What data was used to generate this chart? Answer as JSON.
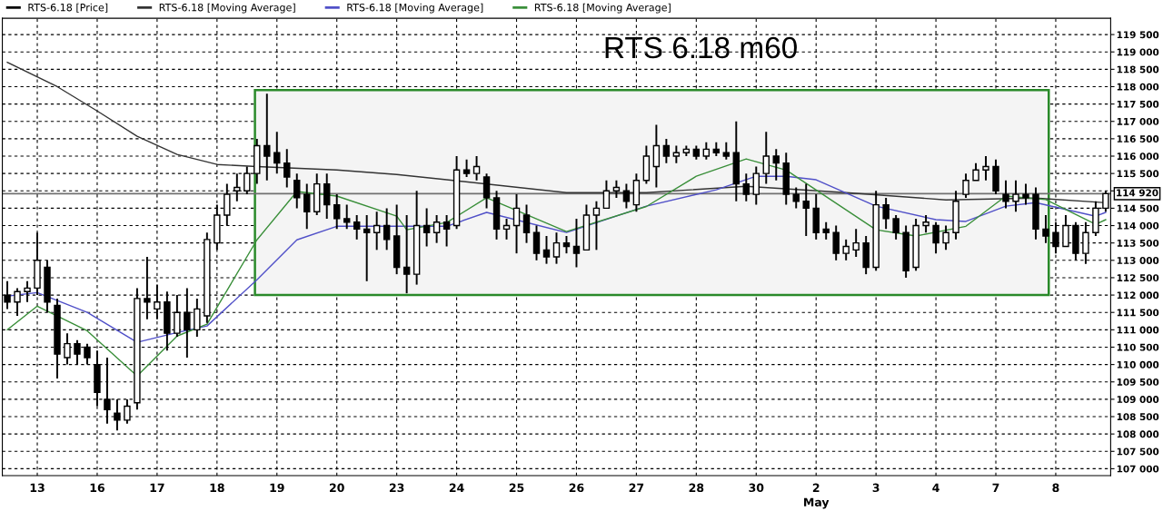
{
  "chart_data": {
    "type": "candlestick",
    "title": "RTS 6.18 m60",
    "categories": [
      null,
      null,
      null,
      "13",
      null,
      null,
      null,
      null,
      null,
      "16",
      null,
      null,
      null,
      null,
      null,
      "17",
      null,
      null,
      null,
      null,
      null,
      "18",
      null,
      null,
      null,
      null,
      null,
      "19",
      null,
      null,
      null,
      null,
      null,
      "20",
      null,
      null,
      null,
      null,
      null,
      "23",
      null,
      null,
      null,
      null,
      null,
      "24",
      null,
      null,
      null,
      null,
      null,
      "25",
      null,
      null,
      null,
      null,
      null,
      "26",
      null,
      null,
      null,
      null,
      null,
      "27",
      null,
      null,
      null,
      null,
      null,
      "28",
      null,
      null,
      null,
      null,
      null,
      "30",
      null,
      null,
      null,
      null,
      null,
      "2\nMay",
      null,
      null,
      null,
      null,
      null,
      "3",
      null,
      null,
      null,
      null,
      null,
      "4",
      null,
      null,
      null,
      null,
      null,
      "7",
      null,
      null,
      null,
      null,
      null,
      "8",
      null,
      null,
      null,
      null,
      null
    ],
    "series": [
      {
        "name": "RTS-6.18 [Price]",
        "color": "#000000",
        "ohlc": [
          [
            112000,
            112400,
            111600,
            111800
          ],
          [
            111800,
            112200,
            111400,
            112100
          ],
          [
            112100,
            112400,
            111800,
            112200
          ],
          [
            112200,
            113800,
            112000,
            113000
          ],
          [
            112800,
            113000,
            111500,
            111800
          ],
          [
            111700,
            111900,
            109600,
            110300
          ],
          [
            110200,
            110900,
            110000,
            110600
          ],
          [
            110600,
            110700,
            110000,
            110300
          ],
          [
            110500,
            110600,
            110000,
            110200
          ],
          [
            110000,
            110400,
            108800,
            109200
          ],
          [
            109000,
            110200,
            108300,
            108700
          ],
          [
            108600,
            109000,
            108100,
            108400
          ],
          [
            108400,
            109000,
            108300,
            108800
          ],
          [
            108900,
            112200,
            108700,
            111900
          ],
          [
            111900,
            113100,
            111300,
            111800
          ],
          [
            111600,
            112300,
            111300,
            111800
          ],
          [
            111800,
            112100,
            110400,
            110900
          ],
          [
            110900,
            112000,
            110800,
            111500
          ],
          [
            111500,
            112200,
            110200,
            111000
          ],
          [
            111000,
            111900,
            110800,
            111600
          ],
          [
            111400,
            113800,
            111200,
            113600
          ],
          [
            113500,
            114600,
            113300,
            114300
          ],
          [
            114300,
            115200,
            114000,
            114900
          ],
          [
            115000,
            115500,
            114700,
            115100
          ],
          [
            115000,
            115700,
            114900,
            115500
          ],
          [
            115500,
            116500,
            115200,
            116300
          ],
          [
            116300,
            117800,
            115300,
            116000
          ],
          [
            116100,
            116700,
            115500,
            115800
          ],
          [
            115800,
            116200,
            115100,
            115400
          ],
          [
            115300,
            115500,
            114500,
            114800
          ],
          [
            114900,
            115200,
            113900,
            114400
          ],
          [
            114400,
            115500,
            114300,
            115200
          ],
          [
            115200,
            115500,
            114200,
            114600
          ],
          [
            114600,
            114900,
            113900,
            114200
          ],
          [
            114200,
            114600,
            113900,
            114100
          ],
          [
            114100,
            114300,
            113600,
            113900
          ],
          [
            113900,
            114300,
            112400,
            113800
          ],
          [
            113800,
            114400,
            113300,
            114000
          ],
          [
            114000,
            114500,
            113300,
            113600
          ],
          [
            113700,
            114600,
            112600,
            112800
          ],
          [
            112800,
            114300,
            112050,
            112600
          ],
          [
            112600,
            115000,
            112300,
            114000
          ],
          [
            114000,
            114500,
            113400,
            113800
          ],
          [
            113800,
            114300,
            113500,
            114100
          ],
          [
            114100,
            114300,
            113400,
            113900
          ],
          [
            114000,
            116000,
            113900,
            115600
          ],
          [
            115600,
            115900,
            115400,
            115500
          ],
          [
            115500,
            116000,
            115300,
            115700
          ],
          [
            115400,
            115500,
            114500,
            114800
          ],
          [
            114800,
            115000,
            113600,
            113900
          ],
          [
            113900,
            114200,
            113600,
            114000
          ],
          [
            114000,
            114900,
            113200,
            114500
          ],
          [
            114300,
            114600,
            113500,
            113800
          ],
          [
            113800,
            114000,
            113000,
            113200
          ],
          [
            113300,
            113700,
            112900,
            113100
          ],
          [
            113100,
            113800,
            112900,
            113500
          ],
          [
            113500,
            113700,
            113200,
            113400
          ],
          [
            113400,
            114200,
            112800,
            113200
          ],
          [
            113300,
            114600,
            113300,
            114300
          ],
          [
            114300,
            114700,
            113300,
            114500
          ],
          [
            114500,
            115300,
            114500,
            115000
          ],
          [
            115000,
            115300,
            114800,
            115100
          ],
          [
            115000,
            115200,
            114500,
            114700
          ],
          [
            114600,
            115500,
            114400,
            115300
          ],
          [
            115300,
            116300,
            115200,
            116000
          ],
          [
            115700,
            116900,
            115100,
            116300
          ],
          [
            116300,
            116500,
            115800,
            116000
          ],
          [
            116000,
            116300,
            115800,
            116100
          ],
          [
            116100,
            116300,
            116000,
            116200
          ],
          [
            116200,
            116300,
            115900,
            116000
          ],
          [
            116000,
            116400,
            115900,
            116200
          ],
          [
            116200,
            116400,
            116000,
            116100
          ],
          [
            116100,
            116400,
            115900,
            116000
          ],
          [
            116100,
            117000,
            114700,
            115200
          ],
          [
            115200,
            115500,
            114700,
            114900
          ],
          [
            114900,
            115700,
            114600,
            115500
          ],
          [
            115500,
            116700,
            115200,
            116000
          ],
          [
            116000,
            116200,
            115300,
            115800
          ],
          [
            115800,
            116100,
            114600,
            114900
          ],
          [
            114900,
            115100,
            114500,
            114700
          ],
          [
            114700,
            115200,
            113700,
            114500
          ],
          [
            114500,
            114900,
            113600,
            113800
          ],
          [
            113900,
            114100,
            113600,
            113800
          ],
          [
            113800,
            114000,
            113000,
            113200
          ],
          [
            113200,
            113600,
            113000,
            113400
          ],
          [
            113300,
            113900,
            113100,
            113500
          ],
          [
            113500,
            113700,
            112600,
            112800
          ],
          [
            112800,
            115000,
            112700,
            114600
          ],
          [
            114600,
            114800,
            113900,
            114200
          ],
          [
            114200,
            114300,
            113600,
            113800
          ],
          [
            113800,
            114000,
            112500,
            112700
          ],
          [
            112800,
            114200,
            112700,
            114000
          ],
          [
            114000,
            114300,
            113800,
            114100
          ],
          [
            114000,
            114100,
            113200,
            113500
          ],
          [
            113500,
            114000,
            113300,
            113800
          ],
          [
            113800,
            115000,
            113600,
            114700
          ],
          [
            114900,
            115500,
            114800,
            115300
          ],
          [
            115300,
            115800,
            115300,
            115600
          ],
          [
            115600,
            116000,
            115300,
            115700
          ],
          [
            115700,
            115900,
            114900,
            115000
          ],
          [
            114900,
            115300,
            114500,
            114700
          ],
          [
            114700,
            115300,
            114400,
            114900
          ],
          [
            114900,
            115200,
            114600,
            114800
          ],
          [
            114900,
            115100,
            113600,
            113900
          ],
          [
            113900,
            114300,
            113500,
            113700
          ],
          [
            113800,
            114100,
            113200,
            113400
          ],
          [
            113400,
            114300,
            113400,
            114000
          ],
          [
            114000,
            114100,
            113000,
            113200
          ],
          [
            113200,
            114100,
            112900,
            113800
          ],
          [
            113800,
            114700,
            113700,
            114500
          ],
          [
            114500,
            115000,
            114400,
            114920
          ]
        ]
      },
      {
        "name": "RTS-6.18 [Moving Average]",
        "type": "line",
        "color": "#333333",
        "values": [
          118700,
          null,
          null,
          null,
          null,
          118000,
          null,
          null,
          null,
          117300,
          null,
          null,
          null,
          116570,
          null,
          null,
          null,
          116050,
          null,
          null,
          null,
          115760,
          null,
          null,
          null,
          115700,
          null,
          null,
          null,
          null,
          null,
          null,
          null,
          115600,
          null,
          null,
          null,
          null,
          null,
          115470,
          null,
          null,
          null,
          null,
          115320,
          null,
          null,
          null,
          null,
          null,
          null,
          null,
          null,
          null,
          null,
          null,
          114950,
          null,
          null,
          null,
          null,
          null,
          null,
          null,
          114950,
          null,
          null,
          null,
          null,
          null,
          null,
          null,
          null,
          null,
          115130,
          null,
          null,
          null,
          null,
          null,
          null,
          null,
          null,
          null,
          114950,
          null,
          null,
          null,
          null,
          null,
          null,
          null,
          null,
          null,
          114740,
          null,
          null,
          null,
          null,
          null,
          null,
          null,
          null,
          114790,
          null,
          null,
          null,
          null,
          null,
          null,
          114660
        ]
      },
      {
        "name": "RTS-6.18 [Moving Average]",
        "type": "line",
        "color": "#5050c8",
        "values": [
          111970,
          null,
          null,
          112070,
          null,
          null,
          null,
          null,
          111500,
          null,
          null,
          null,
          null,
          110640,
          null,
          null,
          null,
          110920,
          null,
          null,
          111110,
          null,
          null,
          null,
          null,
          112440,
          null,
          null,
          null,
          113590,
          null,
          null,
          null,
          113980,
          null,
          null,
          null,
          null,
          null,
          113980,
          null,
          null,
          null,
          null,
          113980,
          null,
          null,
          null,
          114380,
          null,
          null,
          null,
          null,
          null,
          null,
          null,
          113800,
          null,
          null,
          null,
          null,
          null,
          null,
          null,
          114560,
          null,
          null,
          null,
          null,
          null,
          null,
          115030,
          null,
          null,
          null,
          115420,
          null,
          null,
          115420,
          null,
          null,
          115320,
          null,
          null,
          null,
          null,
          null,
          114560,
          null,
          null,
          null,
          null,
          null,
          114170,
          null,
          null,
          114120,
          null,
          null,
          null,
          114560,
          null,
          null,
          114660,
          null,
          null,
          null,
          null,
          null,
          114270,
          114380
        ]
      },
      {
        "name": "RTS-6.18 [Moving Average]",
        "type": "line",
        "color": "#3a8f3a",
        "values": [
          111000,
          null,
          null,
          111680,
          null,
          null,
          null,
          null,
          110970,
          null,
          null,
          null,
          null,
          109670,
          null,
          null,
          null,
          110820,
          null,
          null,
          111160,
          null,
          null,
          null,
          null,
          113590,
          null,
          null,
          null,
          114980,
          null,
          null,
          null,
          114850,
          null,
          null,
          null,
          null,
          null,
          114270,
          113880,
          null,
          null,
          null,
          114090,
          null,
          null,
          null,
          114800,
          null,
          null,
          null,
          null,
          null,
          null,
          null,
          113830,
          null,
          null,
          null,
          null,
          null,
          null,
          null,
          114550,
          null,
          null,
          null,
          null,
          115420,
          null,
          null,
          null,
          null,
          115920,
          null,
          null,
          null,
          115600,
          null,
          null,
          null,
          null,
          null,
          null,
          null,
          null,
          113880,
          null,
          null,
          null,
          113700,
          null,
          null,
          null,
          null,
          113980,
          null,
          null,
          null,
          114850,
          null,
          null,
          null,
          114750,
          null,
          null,
          null,
          null,
          114040,
          114170
        ]
      }
    ],
    "ylim": [
      106800,
      119970
    ],
    "yticks": [
      {
        "value": 107000,
        "label": "107 000"
      },
      {
        "value": 107500,
        "label": "107 500"
      },
      {
        "value": 108000,
        "label": "108 000"
      },
      {
        "value": 108500,
        "label": "108 500"
      },
      {
        "value": 109000,
        "label": "109 000"
      },
      {
        "value": 109500,
        "label": "109 500"
      },
      {
        "value": 110000,
        "label": "110 000"
      },
      {
        "value": 110500,
        "label": "110 500"
      },
      {
        "value": 111000,
        "label": "111 000"
      },
      {
        "value": 111500,
        "label": "111 500"
      },
      {
        "value": 112000,
        "label": "112 000"
      },
      {
        "value": 112500,
        "label": "112 500"
      },
      {
        "value": 113000,
        "label": "113 000"
      },
      {
        "value": 113500,
        "label": "113 500"
      },
      {
        "value": 114000,
        "label": "114 000"
      },
      {
        "value": 114500,
        "label": "114 500"
      },
      {
        "value": 115000,
        "label": null
      },
      {
        "value": 115500,
        "label": "115 500"
      },
      {
        "value": 116000,
        "label": "116 000"
      },
      {
        "value": 116500,
        "label": "116 500"
      },
      {
        "value": 117000,
        "label": "117 000"
      },
      {
        "value": 117500,
        "label": "117 500"
      },
      {
        "value": 118000,
        "label": "118 000"
      },
      {
        "value": 118500,
        "label": "118 500"
      },
      {
        "value": 119000,
        "label": "119 000"
      },
      {
        "value": 119500,
        "label": "119 500"
      }
    ],
    "ref_lines": [
      {
        "axis": "y",
        "value": 114920,
        "label": "114 920",
        "color": "#707070"
      }
    ],
    "bands": [
      {
        "axis": "y",
        "from": 112000,
        "to": 117900,
        "color": "#2a8a2a"
      }
    ],
    "grid": true,
    "legend": "top left",
    "line_style": "solid"
  }
}
